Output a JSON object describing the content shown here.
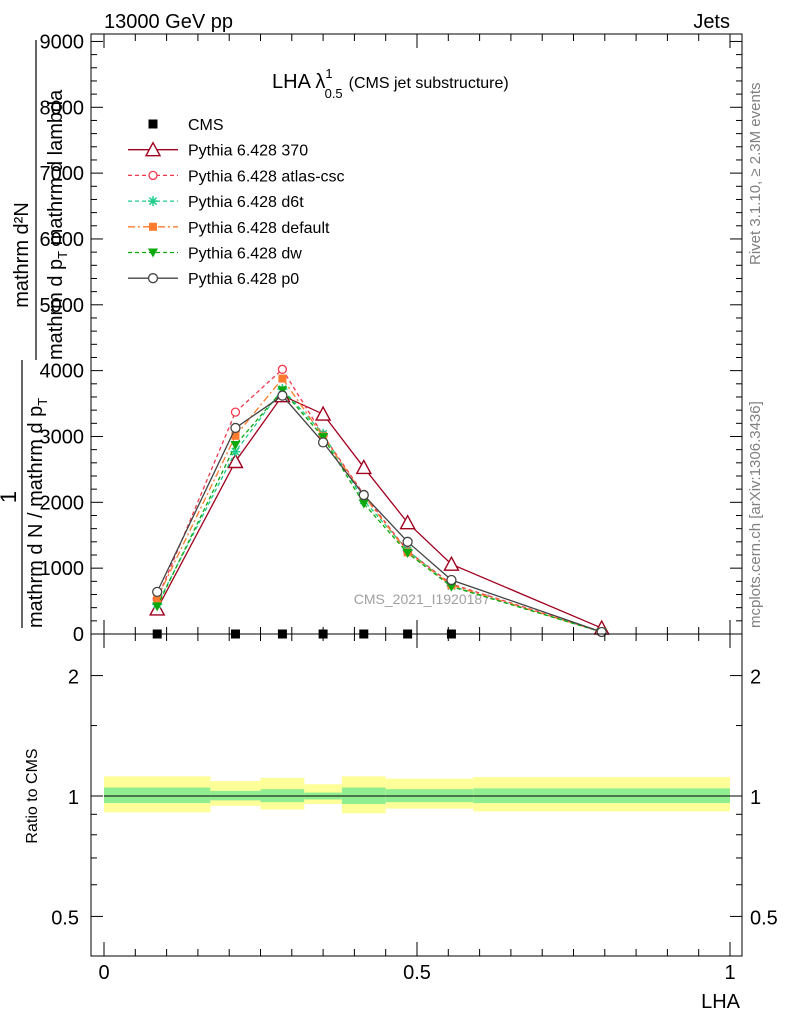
{
  "header": {
    "left": "13000 GeV pp",
    "right": "Jets"
  },
  "side_labels": {
    "rivet": "Rivet 3.1.10, ≥ 2.3M events",
    "mcplots": "mcplots.cern.ch [arXiv:1306.3436]"
  },
  "watermark": "CMS_2021_I1920187",
  "title": {
    "main": "LHA λ",
    "sup": "1",
    "sub": "0.5",
    "paren": "(CMS jet substructure)"
  },
  "ylabel": {
    "numerator": "mathrm d²N",
    "denominator_top": "mathrm d p",
    "denominator_sub": "T",
    "denominator_rest": " mathrm d lambda",
    "prefix_one": "1",
    "prefix_den": "mathrm d N / mathrm d p",
    "prefix_sub": "T"
  },
  "ratio_ylabel": "Ratio to CMS",
  "xlabel": "LHA",
  "colors": {
    "cms": "#000000",
    "p370": "#a0001e",
    "atlas_csc": "#f0384e",
    "d6t": "#1ecc8c",
    "default": "#ff7b2e",
    "dw": "#0ca80c",
    "p0": "#444444",
    "band_outer": "#ffff99",
    "band_inner": "#90ee90"
  },
  "chart_data": [
    {
      "type": "line",
      "xlim": [
        0,
        1
      ],
      "ylim": [
        0,
        9000
      ],
      "yticks": [
        0,
        1000,
        2000,
        3000,
        4000,
        5000,
        6000,
        7000,
        8000,
        9000
      ],
      "ytick_labels": [
        "0",
        "1000",
        "2000",
        "3000",
        "4000",
        "5000",
        "6000",
        "7000",
        "8000",
        "9000"
      ],
      "legend_position": "top-left",
      "series": [
        {
          "name": "CMS",
          "style": "cms",
          "x": [
            0.085,
            0.21,
            0.285,
            0.35,
            0.415,
            0.485,
            0.555
          ],
          "y": [
            0,
            0,
            0,
            0,
            0,
            0,
            0
          ]
        },
        {
          "name": "Pythia 6.428 370",
          "style": "p370",
          "x": [
            0.085,
            0.21,
            0.285,
            0.35,
            0.415,
            0.485,
            0.555,
            0.795
          ],
          "y": [
            380,
            2620,
            3620,
            3340,
            2530,
            1690,
            1060,
            90
          ]
        },
        {
          "name": "Pythia 6.428 atlas-csc",
          "style": "atlas_csc",
          "x": [
            0.085,
            0.21,
            0.285,
            0.35,
            0.415,
            0.485,
            0.555,
            0.795
          ],
          "y": [
            530,
            3370,
            4020,
            3020,
            2120,
            1260,
            760,
            30
          ]
        },
        {
          "name": "Pythia 6.428 d6t",
          "style": "d6t",
          "x": [
            0.085,
            0.21,
            0.285,
            0.35,
            0.415,
            0.485,
            0.555,
            0.795
          ],
          "y": [
            450,
            2770,
            3720,
            3040,
            2030,
            1270,
            730,
            30
          ]
        },
        {
          "name": "Pythia 6.428 default",
          "style": "default",
          "x": [
            0.085,
            0.21,
            0.285,
            0.35,
            0.415,
            0.485,
            0.555,
            0.795
          ],
          "y": [
            540,
            3010,
            3880,
            3000,
            2100,
            1240,
            740,
            30
          ]
        },
        {
          "name": "Pythia 6.428 dw",
          "style": "dw",
          "x": [
            0.085,
            0.21,
            0.285,
            0.35,
            0.415,
            0.485,
            0.555,
            0.795
          ],
          "y": [
            420,
            2870,
            3700,
            2990,
            1980,
            1230,
            720,
            30
          ]
        },
        {
          "name": "Pythia 6.428 p0",
          "style": "p0",
          "x": [
            0.085,
            0.21,
            0.285,
            0.35,
            0.415,
            0.485,
            0.555,
            0.795
          ],
          "y": [
            640,
            3130,
            3620,
            2910,
            2110,
            1400,
            820,
            30
          ]
        }
      ]
    },
    {
      "type": "area",
      "ylabel": "Ratio to CMS",
      "xlabel": "LHA",
      "log_scale_y": true,
      "xlim": [
        0,
        1
      ],
      "ylim": [
        0.4,
        2.4
      ],
      "yticks": [
        0.5,
        1,
        2
      ],
      "ytick_labels": [
        "0.5",
        "1",
        "2"
      ],
      "xticks": [
        0,
        0.5,
        1
      ],
      "xtick_labels": [
        "0",
        "0.5",
        "1"
      ],
      "reference": 1,
      "bins": [
        {
          "x0": 0.0,
          "x1": 0.17,
          "outer": [
            0.91,
            1.12
          ],
          "inner": [
            0.96,
            1.05
          ]
        },
        {
          "x0": 0.17,
          "x1": 0.25,
          "outer": [
            0.945,
            1.09
          ],
          "inner": [
            0.975,
            1.03
          ]
        },
        {
          "x0": 0.25,
          "x1": 0.32,
          "outer": [
            0.925,
            1.11
          ],
          "inner": [
            0.965,
            1.04
          ]
        },
        {
          "x0": 0.32,
          "x1": 0.38,
          "outer": [
            0.955,
            1.07
          ],
          "inner": [
            0.98,
            1.02
          ]
        },
        {
          "x0": 0.38,
          "x1": 0.45,
          "outer": [
            0.905,
            1.12
          ],
          "inner": [
            0.955,
            1.05
          ]
        },
        {
          "x0": 0.45,
          "x1": 0.59,
          "outer": [
            0.93,
            1.105
          ],
          "inner": [
            0.965,
            1.04
          ]
        },
        {
          "x0": 0.59,
          "x1": 1.0,
          "outer": [
            0.915,
            1.115
          ],
          "inner": [
            0.96,
            1.045
          ]
        }
      ]
    }
  ]
}
